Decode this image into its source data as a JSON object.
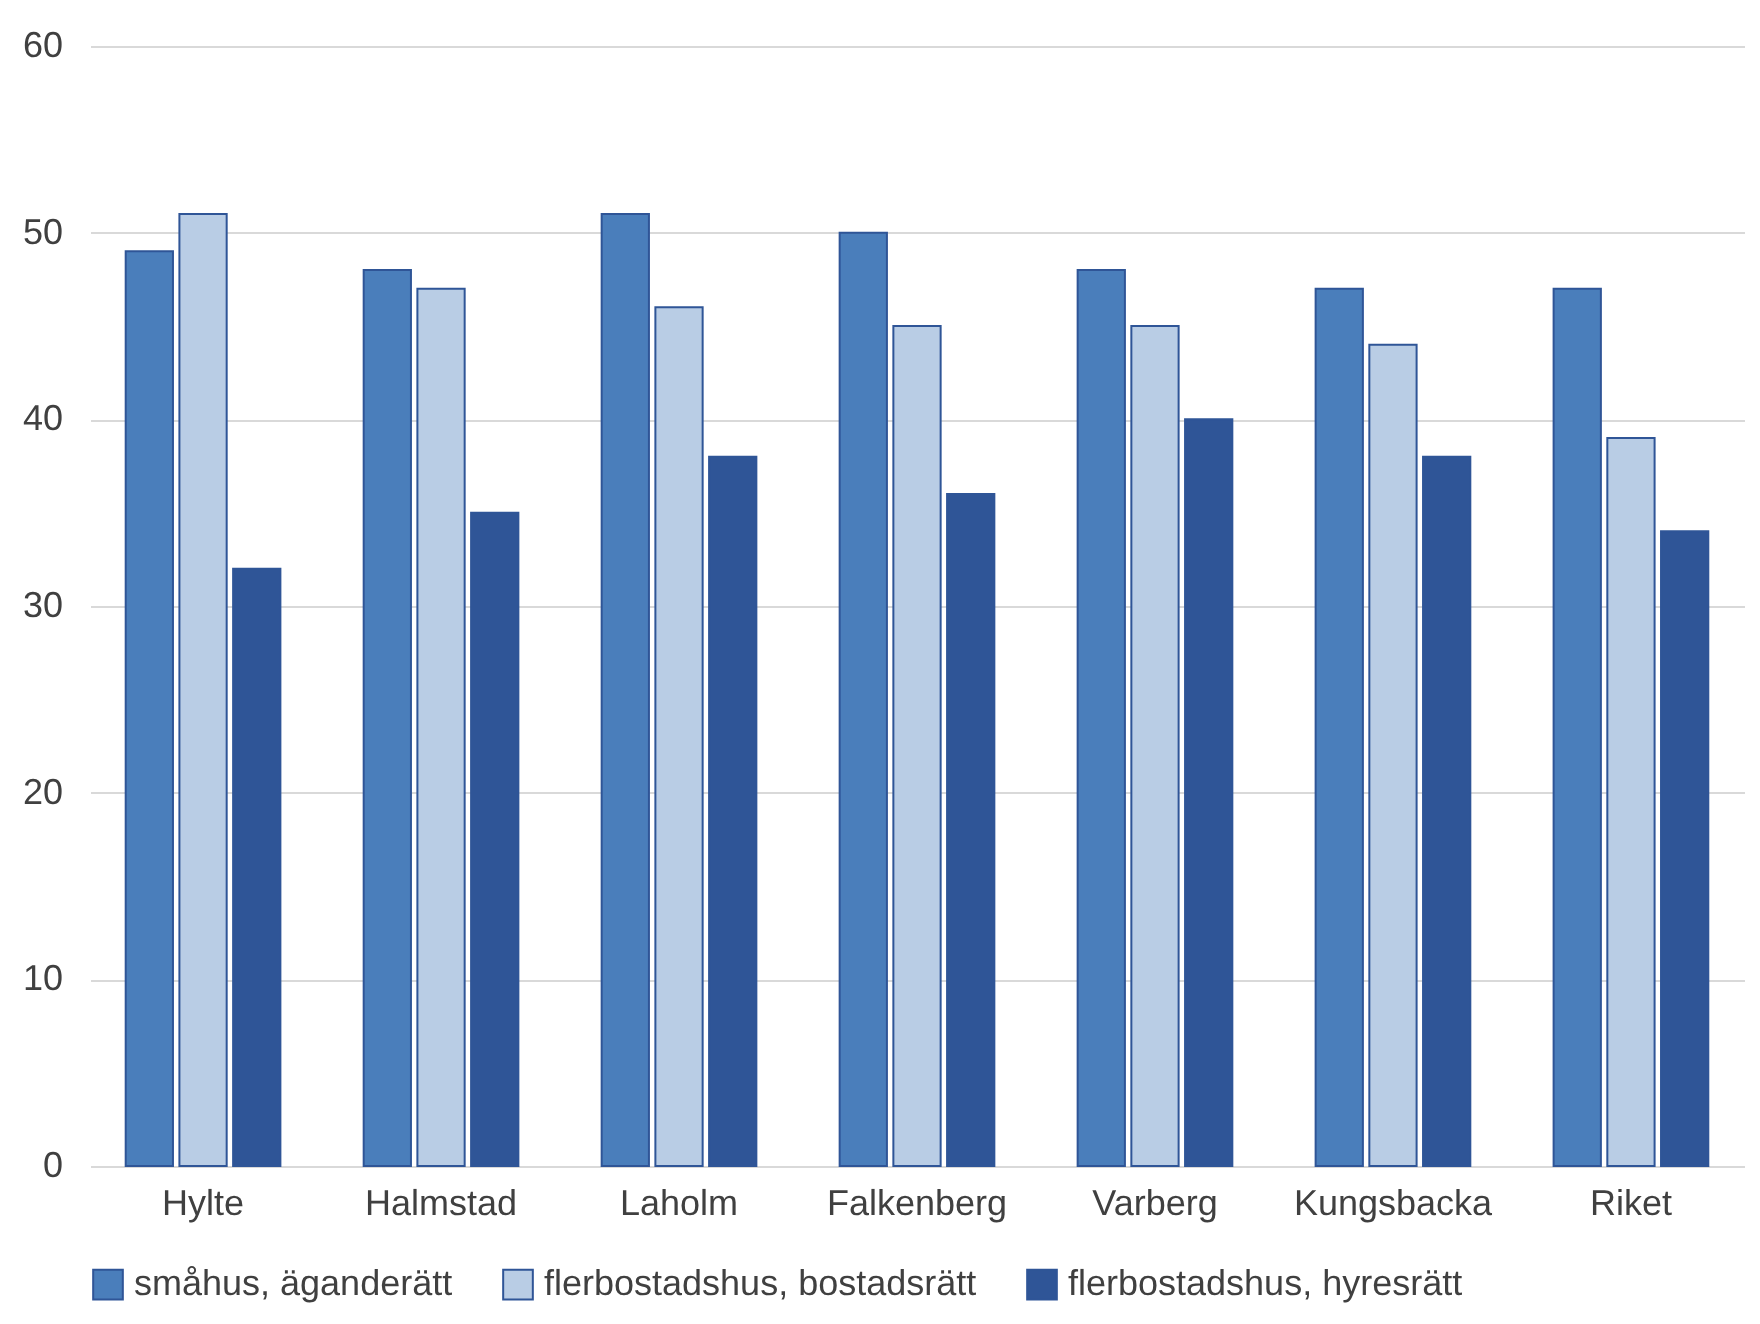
{
  "chart_data": {
    "type": "bar",
    "categories": [
      "Hylte",
      "Halmstad",
      "Laholm",
      "Falkenberg",
      "Varberg",
      "Kungsbacka",
      "Riket"
    ],
    "series": [
      {
        "name": "småhus, äganderätt",
        "color": "#4a7ebb",
        "values": [
          49,
          48,
          51,
          50,
          48,
          47,
          47
        ]
      },
      {
        "name": "flerbostadshus, bostadsrätt",
        "color": "#b9cde5",
        "values": [
          51,
          47,
          46,
          45,
          45,
          44,
          39
        ]
      },
      {
        "name": "flerbostadshus, hyresrätt",
        "color": "#2f5597",
        "values": [
          32,
          35,
          38,
          36,
          40,
          38,
          34
        ]
      }
    ],
    "ylim": [
      0,
      60
    ],
    "yticks": [
      0,
      10,
      20,
      30,
      40,
      50,
      60
    ],
    "grid": "y",
    "legend": "bottom"
  }
}
